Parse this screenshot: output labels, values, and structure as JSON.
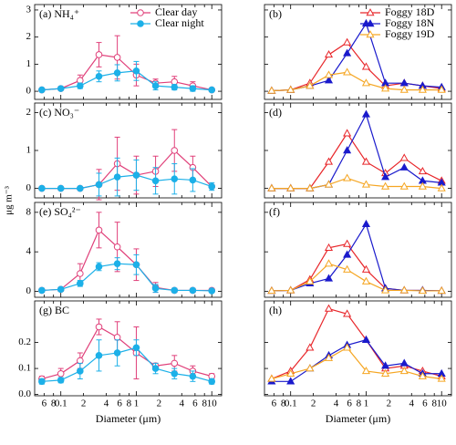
{
  "ylabel": "μg m⁻³",
  "chart_data": [
    {
      "type": "line",
      "title": "(a) NH₄⁺",
      "legend": "upper right",
      "x": [
        0.056,
        0.1,
        0.18,
        0.32,
        0.56,
        1.0,
        1.8,
        3.2,
        5.6,
        10
      ],
      "ylim": [
        -0.3,
        3.2
      ],
      "yticks": [
        0,
        1,
        2,
        3
      ],
      "series": [
        {
          "name": "Clear day",
          "color": "#e0407a",
          "marker": "circle",
          "filled": false,
          "values": [
            0.05,
            0.1,
            0.4,
            1.35,
            1.25,
            0.6,
            0.3,
            0.35,
            0.2,
            0.05
          ],
          "errors": [
            0.03,
            0.05,
            0.2,
            0.45,
            0.8,
            0.4,
            0.15,
            0.2,
            0.15,
            0.03
          ]
        },
        {
          "name": "Clear night",
          "color": "#1cb0e8",
          "marker": "circle",
          "filled": true,
          "values": [
            0.05,
            0.1,
            0.2,
            0.55,
            0.68,
            0.75,
            0.2,
            0.15,
            0.1,
            0.05
          ],
          "errors": [
            0.03,
            0.05,
            0.1,
            0.2,
            0.3,
            0.35,
            0.15,
            0.1,
            0.1,
            0.03
          ]
        }
      ]
    },
    {
      "type": "line",
      "title": "(b)",
      "legend": "upper right",
      "x": [
        0.056,
        0.1,
        0.18,
        0.32,
        0.56,
        1.0,
        1.8,
        3.2,
        5.6,
        10
      ],
      "ylim": [
        -0.3,
        3.2
      ],
      "series": [
        {
          "name": "Foggy 18D",
          "color": "#e8262a",
          "marker": "triangle",
          "filled": false,
          "values": [
            0.02,
            0.05,
            0.3,
            1.35,
            1.8,
            0.9,
            0.2,
            0.3,
            0.2,
            0.1
          ]
        },
        {
          "name": "Foggy 18N",
          "color": "#1a1acc",
          "marker": "triangle",
          "filled": true,
          "values": [
            0.02,
            0.05,
            0.2,
            0.4,
            1.4,
            2.5,
            0.3,
            0.3,
            0.2,
            0.15
          ]
        },
        {
          "name": "Foggy 19D",
          "color": "#f5a623",
          "marker": "triangle",
          "filled": false,
          "values": [
            0.02,
            0.05,
            0.2,
            0.6,
            0.7,
            0.3,
            0.1,
            0.05,
            0.05,
            0.05
          ]
        }
      ]
    },
    {
      "type": "line",
      "title": "(c) NO₃⁻",
      "x": [
        0.056,
        0.1,
        0.18,
        0.32,
        0.56,
        1.0,
        1.8,
        3.2,
        5.6,
        10
      ],
      "ylim": [
        -0.25,
        2.25
      ],
      "yticks": [
        0,
        1,
        2
      ],
      "series": [
        {
          "name": "Clear day",
          "color": "#e0407a",
          "marker": "circle",
          "filled": false,
          "values": [
            0,
            0,
            0,
            0.1,
            0.65,
            0.35,
            0.45,
            1.0,
            0.55,
            0.05
          ],
          "errors": [
            0,
            0,
            0,
            0.4,
            0.7,
            0.5,
            0.4,
            0.55,
            0.3,
            0.05
          ]
        },
        {
          "name": "Clear night",
          "color": "#1cb0e8",
          "marker": "circle",
          "filled": true,
          "values": [
            0,
            0,
            0,
            0.1,
            0.3,
            0.35,
            0.2,
            0.25,
            0.22,
            0.05
          ],
          "errors": [
            0,
            0,
            0,
            0.3,
            0.5,
            0.4,
            0.35,
            0.4,
            0.3,
            0.1
          ]
        }
      ]
    },
    {
      "type": "line",
      "title": "(d)",
      "x": [
        0.056,
        0.1,
        0.18,
        0.32,
        0.56,
        1.0,
        1.8,
        3.2,
        5.6,
        10
      ],
      "ylim": [
        -0.25,
        2.25
      ],
      "series": [
        {
          "name": "Foggy 18D",
          "color": "#e8262a",
          "marker": "triangle",
          "filled": false,
          "values": [
            0,
            0,
            0,
            0.7,
            1.45,
            0.7,
            0.4,
            0.8,
            0.45,
            0.2
          ]
        },
        {
          "name": "Foggy 18N",
          "color": "#1a1acc",
          "marker": "triangle",
          "filled": true,
          "values": [
            0,
            0,
            0,
            0.1,
            1.0,
            1.95,
            0.3,
            0.55,
            0.2,
            0.15
          ]
        },
        {
          "name": "Foggy 19D",
          "color": "#f5a623",
          "marker": "triangle",
          "filled": false,
          "values": [
            0,
            0,
            0,
            0.1,
            0.27,
            0.1,
            0.05,
            0.05,
            0.05,
            0
          ]
        }
      ]
    },
    {
      "type": "line",
      "title": "(e) SO₄²⁻",
      "x": [
        0.056,
        0.1,
        0.18,
        0.32,
        0.56,
        1.0,
        1.8,
        3.2,
        5.6,
        10
      ],
      "ylim": [
        -0.6,
        9
      ],
      "yticks": [
        0,
        4,
        8
      ],
      "series": [
        {
          "name": "Clear day",
          "color": "#e0407a",
          "marker": "circle",
          "filled": false,
          "values": [
            0.1,
            0.2,
            1.8,
            6.2,
            4.5,
            2.7,
            0.4,
            0.1,
            0.1,
            0.1
          ],
          "errors": [
            0.2,
            0.2,
            1.0,
            1.8,
            2.5,
            1.6,
            0.5,
            0.2,
            0.2,
            0.2
          ]
        },
        {
          "name": "Clear night",
          "color": "#1cb0e8",
          "marker": "circle",
          "filled": true,
          "values": [
            0.1,
            0.2,
            0.8,
            2.5,
            2.8,
            2.7,
            0.3,
            0.1,
            0.1,
            0.05
          ],
          "errors": [
            0.2,
            0.2,
            0.3,
            0.4,
            0.6,
            1.0,
            0.4,
            0.2,
            0.1,
            0.1
          ]
        }
      ]
    },
    {
      "type": "line",
      "title": "(f)",
      "x": [
        0.056,
        0.1,
        0.18,
        0.32,
        0.56,
        1.0,
        1.8,
        3.2,
        5.6,
        10
      ],
      "ylim": [
        -0.6,
        9
      ],
      "series": [
        {
          "name": "Foggy 18D",
          "color": "#e8262a",
          "marker": "triangle",
          "filled": false,
          "values": [
            0.05,
            0.1,
            1.2,
            4.4,
            4.8,
            2.2,
            0.3,
            0.1,
            0.1,
            0.05
          ]
        },
        {
          "name": "Foggy 18N",
          "color": "#1a1acc",
          "marker": "triangle",
          "filled": true,
          "values": [
            0.05,
            0.1,
            0.8,
            1.3,
            3.7,
            6.8,
            0.3,
            0.1,
            0.1,
            0.05
          ]
        },
        {
          "name": "Foggy 19D",
          "color": "#f5a623",
          "marker": "triangle",
          "filled": false,
          "values": [
            0.05,
            0.1,
            1.0,
            2.8,
            2.2,
            1.0,
            0.1,
            0.1,
            0.05,
            0.05
          ]
        }
      ]
    },
    {
      "type": "line",
      "title": "(g) BC",
      "xlabel": "Diameter (μm)",
      "x": [
        0.056,
        0.1,
        0.18,
        0.32,
        0.56,
        1.0,
        1.8,
        3.2,
        5.6,
        10
      ],
      "xlim": [
        0.045,
        13.5
      ],
      "xticks": [
        {
          "value": 0.06,
          "label": "6"
        },
        {
          "value": 0.08,
          "label": "8"
        },
        0.1,
        {
          "value": 0.2,
          "label": "2"
        },
        {
          "value": 0.4,
          "label": "4"
        },
        {
          "value": 0.6,
          "label": "6"
        },
        {
          "value": 0.8,
          "label": "8"
        },
        1,
        {
          "value": 2,
          "label": "2"
        },
        {
          "value": 4,
          "label": "4"
        },
        {
          "value": 6,
          "label": "6"
        },
        {
          "value": 8,
          "label": "8"
        },
        10
      ],
      "ylim": [
        -0.005,
        0.36
      ],
      "yticks": [
        {
          "value": 0,
          "label": "0.0"
        },
        0.1,
        0.2
      ],
      "series": [
        {
          "name": "Clear day",
          "color": "#e0407a",
          "marker": "circle",
          "filled": false,
          "values": [
            0.06,
            0.08,
            0.13,
            0.26,
            0.22,
            0.16,
            0.11,
            0.12,
            0.09,
            0.07
          ],
          "errors": [
            0.01,
            0.02,
            0.03,
            0.03,
            0.06,
            0.1,
            0.01,
            0.03,
            0.02,
            0.01
          ]
        },
        {
          "name": "Clear night",
          "color": "#1cb0e8",
          "marker": "circle",
          "filled": true,
          "values": [
            0.05,
            0.055,
            0.09,
            0.15,
            0.16,
            0.18,
            0.1,
            0.08,
            0.07,
            0.05
          ],
          "errors": [
            0.01,
            0.01,
            0.03,
            0.06,
            0.05,
            0.03,
            0.02,
            0.02,
            0.02,
            0.01
          ]
        }
      ]
    },
    {
      "type": "line",
      "title": "(h)",
      "xlabel": "Diameter (μm)",
      "x": [
        0.056,
        0.1,
        0.18,
        0.32,
        0.56,
        1.0,
        1.8,
        3.2,
        5.6,
        10
      ],
      "xlim": [
        0.045,
        13.5
      ],
      "xticks": [
        {
          "value": 0.06,
          "label": "6"
        },
        {
          "value": 0.08,
          "label": "8"
        },
        0.1,
        {
          "value": 0.2,
          "label": "2"
        },
        {
          "value": 0.4,
          "label": "4"
        },
        {
          "value": 0.6,
          "label": "6"
        },
        {
          "value": 0.8,
          "label": "8"
        },
        1,
        {
          "value": 2,
          "label": "2"
        },
        {
          "value": 4,
          "label": "4"
        },
        {
          "value": 6,
          "label": "6"
        },
        {
          "value": 8,
          "label": "8"
        },
        10
      ],
      "ylim": [
        -0.005,
        0.36
      ],
      "series": [
        {
          "name": "Foggy 18D",
          "color": "#e8262a",
          "marker": "triangle",
          "filled": false,
          "values": [
            0.06,
            0.09,
            0.18,
            0.33,
            0.31,
            0.21,
            0.1,
            0.11,
            0.09,
            0.07
          ]
        },
        {
          "name": "Foggy 18N",
          "color": "#1a1acc",
          "marker": "triangle",
          "filled": true,
          "values": [
            0.05,
            0.05,
            0.1,
            0.15,
            0.19,
            0.21,
            0.11,
            0.12,
            0.08,
            0.08
          ]
        },
        {
          "name": "Foggy 19D",
          "color": "#f5a623",
          "marker": "triangle",
          "filled": false,
          "values": [
            0.06,
            0.08,
            0.1,
            0.14,
            0.18,
            0.09,
            0.08,
            0.09,
            0.07,
            0.06
          ]
        }
      ]
    }
  ]
}
